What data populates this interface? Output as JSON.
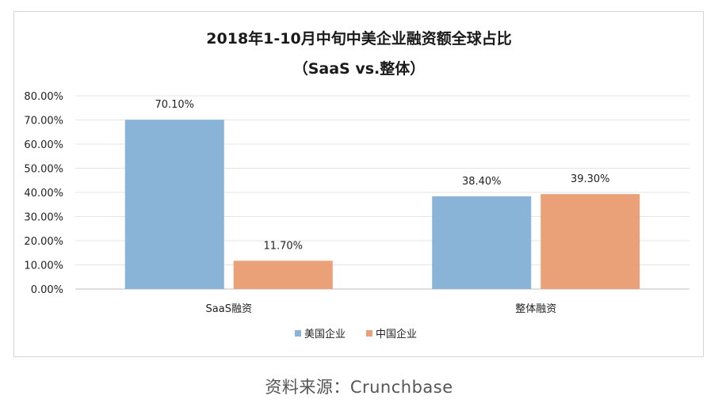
{
  "chart_data": {
    "type": "bar",
    "title": "2018年1-10月中旬中美企业融资额全球占比",
    "subtitle": "（SaaS vs.整体）",
    "categories": [
      "SaaS融资",
      "整体融资"
    ],
    "series": [
      {
        "name": "美国企业",
        "values": [
          70.1,
          38.4
        ],
        "labels": [
          "70.10%",
          "38.40%"
        ],
        "color": "#89B4D8"
      },
      {
        "name": "中国企业",
        "values": [
          11.7,
          39.3
        ],
        "labels": [
          "11.70%",
          "39.30%"
        ],
        "color": "#EBA177"
      }
    ],
    "yticks": [
      "0.00%",
      "10.00%",
      "20.00%",
      "30.00%",
      "40.00%",
      "50.00%",
      "60.00%",
      "70.00%",
      "80.00%"
    ],
    "ylim": [
      0,
      80
    ],
    "grid": true,
    "legend_position": "bottom"
  },
  "source_text": "资料来源：Crunchbase"
}
